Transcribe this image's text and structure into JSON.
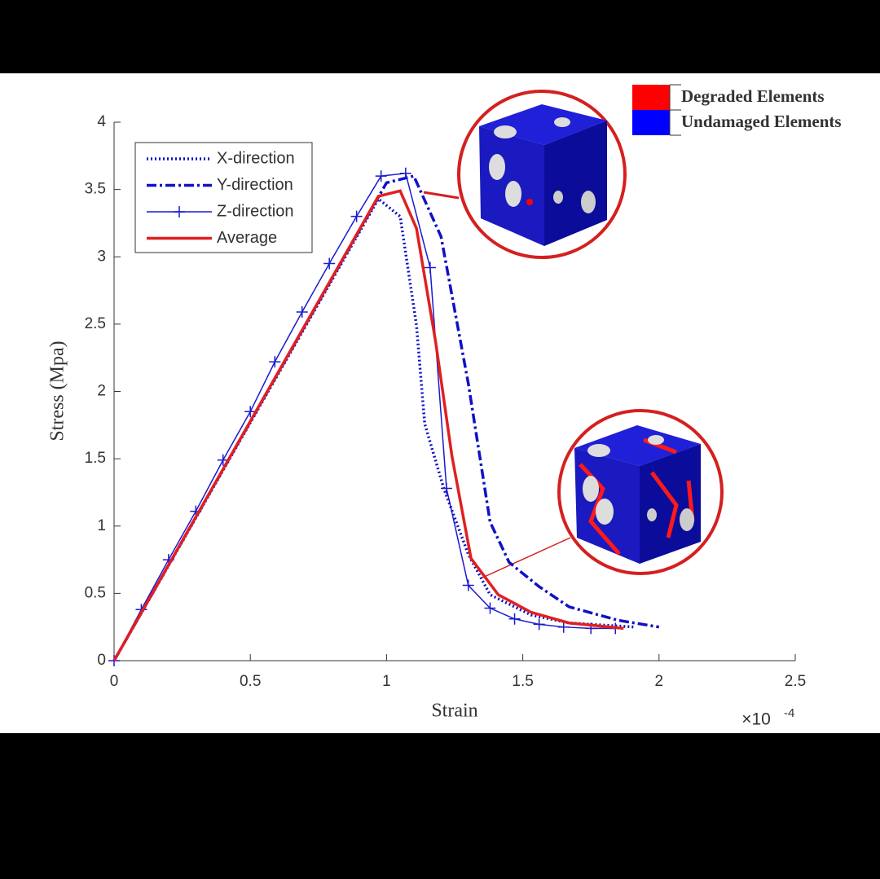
{
  "chart_data": {
    "type": "line",
    "x_label": "Strain",
    "y_label": "Stress (Mpa)",
    "x_scale": {
      "base": "×10",
      "exponent": "-4"
    },
    "xlim": [
      0,
      2.5
    ],
    "xticks": [
      0,
      0.5,
      1,
      1.5,
      2,
      2.5
    ],
    "ylim": [
      0,
      4
    ],
    "yticks": [
      0,
      0.5,
      1,
      1.5,
      2,
      2.5,
      3,
      3.5,
      4
    ],
    "legend": "upper left",
    "series": [
      {
        "name": "X-direction",
        "color": "#1010c8",
        "style": "dotted",
        "x": [
          0,
          0.97,
          1.05,
          1.11,
          1.14,
          1.21,
          1.3,
          1.38,
          1.53,
          1.67,
          1.91
        ],
        "values": [
          0,
          3.43,
          3.3,
          2.49,
          1.76,
          1.28,
          0.79,
          0.49,
          0.34,
          0.28,
          0.25
        ]
      },
      {
        "name": "Y-direction",
        "color": "#1010c8",
        "style": "dashdot",
        "x": [
          0,
          1.0,
          1.1,
          1.2,
          1.3,
          1.38,
          1.45,
          1.56,
          1.67,
          1.85,
          2.0
        ],
        "values": [
          0,
          3.55,
          3.6,
          3.15,
          2.06,
          1.03,
          0.73,
          0.55,
          0.4,
          0.3,
          0.25
        ]
      },
      {
        "name": "Z-direction",
        "color": "#1a1ad0",
        "style": "solid-plus",
        "x": [
          0,
          0.1,
          0.2,
          0.3,
          0.4,
          0.5,
          0.59,
          0.69,
          0.79,
          0.89,
          0.98,
          1.07,
          1.16,
          1.22,
          1.3,
          1.38,
          1.47,
          1.56,
          1.65,
          1.75,
          1.84
        ],
        "values": [
          0,
          0.38,
          0.75,
          1.11,
          1.49,
          1.85,
          2.22,
          2.59,
          2.95,
          3.3,
          3.6,
          3.62,
          2.92,
          1.28,
          0.56,
          0.39,
          0.31,
          0.27,
          0.25,
          0.24,
          0.24
        ]
      },
      {
        "name": "Average",
        "color": "#e02020",
        "style": "solid",
        "x": [
          0,
          0.97,
          1.05,
          1.11,
          1.18,
          1.24,
          1.31,
          1.41,
          1.53,
          1.67,
          1.87
        ],
        "values": [
          0,
          3.45,
          3.49,
          3.21,
          2.37,
          1.52,
          0.76,
          0.49,
          0.36,
          0.28,
          0.24
        ]
      }
    ],
    "element_legend": [
      {
        "name": "Degraded Elements",
        "color": "#ff0000"
      },
      {
        "name": "Undamaged Elements",
        "color": "#0000ff"
      }
    ]
  }
}
